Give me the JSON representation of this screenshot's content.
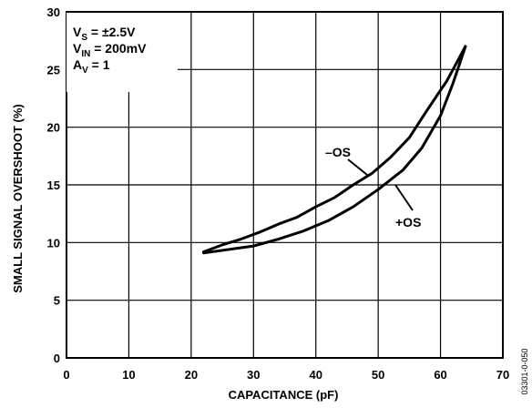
{
  "chart_data": {
    "type": "line",
    "title": "",
    "xlabel": "CAPACITANCE (pF)",
    "ylabel": "SMALL SIGNAL OVERSHOOT (%)",
    "xlim": [
      0,
      70
    ],
    "ylim": [
      0,
      30
    ],
    "xticks": [
      "0",
      "10",
      "20",
      "30",
      "40",
      "50",
      "60",
      "70"
    ],
    "yticks": [
      "0",
      "5",
      "10",
      "15",
      "20",
      "25",
      "30"
    ],
    "grid": true,
    "conditions": {
      "vs_label": "V",
      "vs_sub": "S",
      "vs_value": " = ±2.5V",
      "vin_label": "V",
      "vin_sub": "IN",
      "vin_value": " = 200mV",
      "av_label": "A",
      "av_sub": "V",
      "av_value": " = 1"
    },
    "series": [
      {
        "name": "–OS",
        "x": [
          22,
          25,
          28,
          31,
          34,
          37,
          40,
          43,
          46,
          49,
          52,
          55,
          58,
          61,
          64
        ],
        "y": [
          9.2,
          9.8,
          10.3,
          10.9,
          11.6,
          12.2,
          13.1,
          13.9,
          15.0,
          16.0,
          17.4,
          19.1,
          21.6,
          24.0,
          27.0
        ]
      },
      {
        "name": "+OS",
        "x": [
          22,
          26,
          30,
          34,
          38,
          42,
          46,
          50,
          54,
          57,
          60,
          62,
          64
        ],
        "y": [
          9.1,
          9.4,
          9.7,
          10.3,
          11.0,
          11.9,
          13.1,
          14.6,
          16.3,
          18.2,
          21.0,
          23.8,
          27.0
        ]
      }
    ],
    "figure_id": "03301-0-050",
    "colors": {
      "line": "#000000",
      "grid": "#000000",
      "axis": "#000000",
      "background": "#ffffff"
    }
  }
}
